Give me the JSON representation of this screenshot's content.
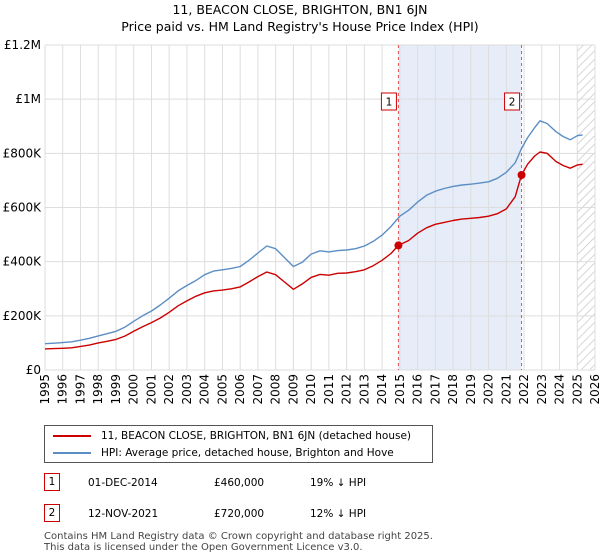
{
  "chart_data": {
    "type": "line",
    "title": "11, BEACON CLOSE, BRIGHTON, BN1 6JN",
    "subtitle": "Price paid vs. HM Land Registry's House Price Index (HPI)",
    "xlabel": "",
    "ylabel": "",
    "xlim": [
      1995,
      2026
    ],
    "ylim": [
      0,
      1200000
    ],
    "x_ticks": [
      "1995",
      "1996",
      "1997",
      "1998",
      "1999",
      "2000",
      "2001",
      "2002",
      "2003",
      "2004",
      "2005",
      "2006",
      "2007",
      "2008",
      "2009",
      "2010",
      "2011",
      "2012",
      "2013",
      "2014",
      "2015",
      "2016",
      "2017",
      "2018",
      "2019",
      "2020",
      "2021",
      "2022",
      "2023",
      "2024",
      "2025",
      "2026"
    ],
    "y_ticks": [
      {
        "value": 0,
        "label": "£0"
      },
      {
        "value": 200000,
        "label": "£200K"
      },
      {
        "value": 400000,
        "label": "£400K"
      },
      {
        "value": 600000,
        "label": "£600K"
      },
      {
        "value": 800000,
        "label": "£800K"
      },
      {
        "value": 1000000,
        "label": "£1M"
      },
      {
        "value": 1200000,
        "label": "£1.2M"
      }
    ],
    "grid": true,
    "series": [
      {
        "name": "11, BEACON CLOSE, BRIGHTON, BN1 6JN (detached house)",
        "color": "#cc0000",
        "points": [
          [
            1995.0,
            78000
          ],
          [
            1995.5,
            79000
          ],
          [
            1996.0,
            80000
          ],
          [
            1996.5,
            82000
          ],
          [
            1997.0,
            87000
          ],
          [
            1997.5,
            92000
          ],
          [
            1998.0,
            100000
          ],
          [
            1998.5,
            106000
          ],
          [
            1999.0,
            113000
          ],
          [
            1999.5,
            125000
          ],
          [
            2000.0,
            143000
          ],
          [
            2000.5,
            160000
          ],
          [
            2001.0,
            175000
          ],
          [
            2001.5,
            192000
          ],
          [
            2002.0,
            213000
          ],
          [
            2002.5,
            237000
          ],
          [
            2003.0,
            255000
          ],
          [
            2003.5,
            272000
          ],
          [
            2004.0,
            285000
          ],
          [
            2004.5,
            292000
          ],
          [
            2005.0,
            295000
          ],
          [
            2005.5,
            300000
          ],
          [
            2006.0,
            307000
          ],
          [
            2006.5,
            325000
          ],
          [
            2007.0,
            345000
          ],
          [
            2007.5,
            362000
          ],
          [
            2008.0,
            352000
          ],
          [
            2008.5,
            325000
          ],
          [
            2009.0,
            298000
          ],
          [
            2009.5,
            318000
          ],
          [
            2010.0,
            342000
          ],
          [
            2010.5,
            353000
          ],
          [
            2011.0,
            350000
          ],
          [
            2011.5,
            357000
          ],
          [
            2012.0,
            358000
          ],
          [
            2012.5,
            363000
          ],
          [
            2013.0,
            370000
          ],
          [
            2013.5,
            385000
          ],
          [
            2014.0,
            405000
          ],
          [
            2014.5,
            430000
          ],
          [
            2014.92,
            460000
          ],
          [
            2015.5,
            478000
          ],
          [
            2016.0,
            505000
          ],
          [
            2016.5,
            525000
          ],
          [
            2017.0,
            538000
          ],
          [
            2017.5,
            545000
          ],
          [
            2018.0,
            552000
          ],
          [
            2018.5,
            557000
          ],
          [
            2019.0,
            560000
          ],
          [
            2019.5,
            563000
          ],
          [
            2020.0,
            568000
          ],
          [
            2020.5,
            577000
          ],
          [
            2021.0,
            595000
          ],
          [
            2021.5,
            640000
          ],
          [
            2021.86,
            720000
          ],
          [
            2022.2,
            760000
          ],
          [
            2022.6,
            790000
          ],
          [
            2022.9,
            805000
          ],
          [
            2023.3,
            800000
          ],
          [
            2023.8,
            770000
          ],
          [
            2024.2,
            755000
          ],
          [
            2024.6,
            745000
          ],
          [
            2025.0,
            757000
          ],
          [
            2025.3,
            760000
          ]
        ]
      },
      {
        "name": "HPI: Average price, detached house, Brighton and Hove",
        "color": "#5b8ec4",
        "points": [
          [
            1995.0,
            97000
          ],
          [
            1995.5,
            99000
          ],
          [
            1996.0,
            101000
          ],
          [
            1996.5,
            104000
          ],
          [
            1997.0,
            110000
          ],
          [
            1997.5,
            117000
          ],
          [
            1998.0,
            126000
          ],
          [
            1998.5,
            134000
          ],
          [
            1999.0,
            143000
          ],
          [
            1999.5,
            158000
          ],
          [
            2000.0,
            180000
          ],
          [
            2000.5,
            200000
          ],
          [
            2001.0,
            218000
          ],
          [
            2001.5,
            240000
          ],
          [
            2002.0,
            265000
          ],
          [
            2002.5,
            292000
          ],
          [
            2003.0,
            312000
          ],
          [
            2003.5,
            330000
          ],
          [
            2004.0,
            352000
          ],
          [
            2004.5,
            365000
          ],
          [
            2005.0,
            370000
          ],
          [
            2005.5,
            375000
          ],
          [
            2006.0,
            382000
          ],
          [
            2006.5,
            405000
          ],
          [
            2007.0,
            432000
          ],
          [
            2007.5,
            458000
          ],
          [
            2008.0,
            448000
          ],
          [
            2008.5,
            415000
          ],
          [
            2009.0,
            382000
          ],
          [
            2009.5,
            398000
          ],
          [
            2010.0,
            428000
          ],
          [
            2010.5,
            440000
          ],
          [
            2011.0,
            436000
          ],
          [
            2011.5,
            441000
          ],
          [
            2012.0,
            443000
          ],
          [
            2012.5,
            448000
          ],
          [
            2013.0,
            458000
          ],
          [
            2013.5,
            475000
          ],
          [
            2014.0,
            498000
          ],
          [
            2014.5,
            530000
          ],
          [
            2015.0,
            568000
          ],
          [
            2015.5,
            590000
          ],
          [
            2016.0,
            620000
          ],
          [
            2016.5,
            645000
          ],
          [
            2017.0,
            660000
          ],
          [
            2017.5,
            670000
          ],
          [
            2018.0,
            678000
          ],
          [
            2018.5,
            683000
          ],
          [
            2019.0,
            686000
          ],
          [
            2019.5,
            690000
          ],
          [
            2020.0,
            695000
          ],
          [
            2020.5,
            708000
          ],
          [
            2021.0,
            730000
          ],
          [
            2021.5,
            765000
          ],
          [
            2021.86,
            818000
          ],
          [
            2022.2,
            858000
          ],
          [
            2022.6,
            895000
          ],
          [
            2022.9,
            920000
          ],
          [
            2023.3,
            910000
          ],
          [
            2023.8,
            880000
          ],
          [
            2024.2,
            862000
          ],
          [
            2024.6,
            850000
          ],
          [
            2025.0,
            865000
          ],
          [
            2025.3,
            868000
          ]
        ]
      }
    ],
    "transactions": [
      {
        "label": "1",
        "x": 2014.92,
        "y": 460000,
        "date": "01-DEC-2014",
        "price": "£460,000",
        "hpi_delta": "19% ↓ HPI"
      },
      {
        "label": "2",
        "x": 2021.86,
        "y": 720000,
        "date": "12-NOV-2021",
        "price": "£720,000",
        "hpi_delta": "12% ↓ HPI"
      }
    ],
    "shaded_region": {
      "from": 2014.92,
      "to": 2021.86
    },
    "hatched_region": {
      "from": 2025.0,
      "to": 2026
    }
  },
  "footer": {
    "line1": "Contains HM Land Registry data © Crown copyright and database right 2025.",
    "line2": "This data is licensed under the Open Government Licence v3.0."
  }
}
